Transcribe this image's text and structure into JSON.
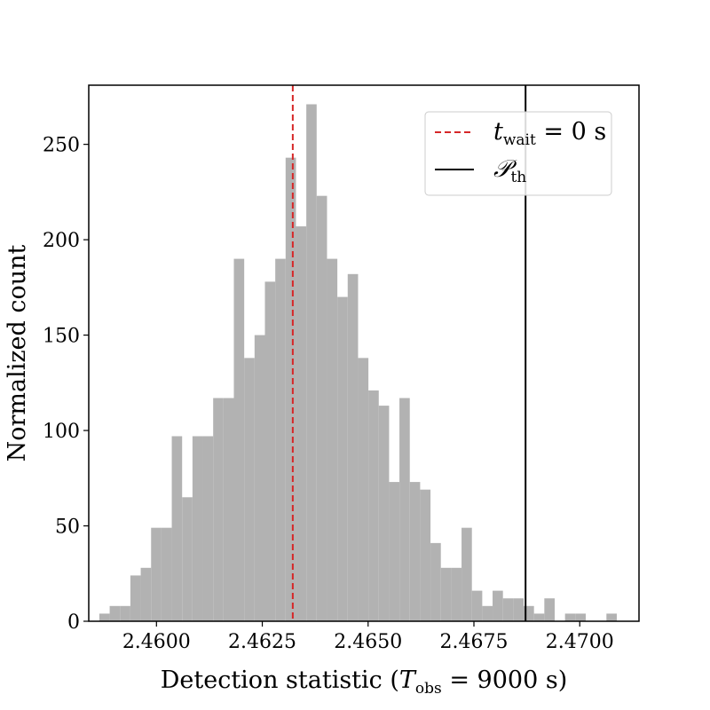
{
  "chart_data": {
    "type": "histogram",
    "xlabel": "Detection statistic (T_obs = 9000 s)",
    "xlabel_parts": {
      "prefix": "Detection statistic (",
      "var": "T",
      "sub": "obs",
      "suffix": " = 9000 s)"
    },
    "ylabel": "Normalized count",
    "xlim": [
      2.4584,
      2.4714
    ],
    "ylim": [
      0,
      281
    ],
    "xticks": [
      2.46,
      2.4625,
      2.465,
      2.4675,
      2.47
    ],
    "xtick_labels": [
      "2.4600",
      "2.4625",
      "2.4650",
      "2.4675",
      "2.4700"
    ],
    "yticks": [
      0,
      50,
      100,
      150,
      200,
      250
    ],
    "ytick_labels": [
      "0",
      "50",
      "100",
      "150",
      "200",
      "250"
    ],
    "grid": false,
    "bar_color": "#b2b2b2",
    "bins": {
      "start": 2.45865,
      "width": 0.0002445,
      "counts": [
        4,
        8,
        8,
        24,
        28,
        49,
        49,
        97,
        65,
        97,
        97,
        117,
        117,
        190,
        138,
        150,
        178,
        190,
        243,
        207,
        271,
        223,
        190,
        170,
        182,
        138,
        121,
        113,
        73,
        117,
        73,
        69,
        41,
        28,
        28,
        49,
        16,
        8,
        16,
        12,
        12,
        8,
        4,
        12,
        0,
        4,
        4,
        0,
        0,
        4
      ]
    },
    "vlines": [
      {
        "name": "t_wait = 0 s",
        "x": 2.46322,
        "color": "#d62728",
        "style": "dashed"
      },
      {
        "name": "P_th",
        "x": 2.46872,
        "color": "#000000",
        "style": "solid"
      }
    ],
    "legend": {
      "placement": "top-right",
      "entries": [
        {
          "var": "t",
          "sub": "wait",
          "rest": " = 0 s"
        },
        {
          "var": "𝒫",
          "sub": "th",
          "rest": ""
        }
      ]
    }
  }
}
